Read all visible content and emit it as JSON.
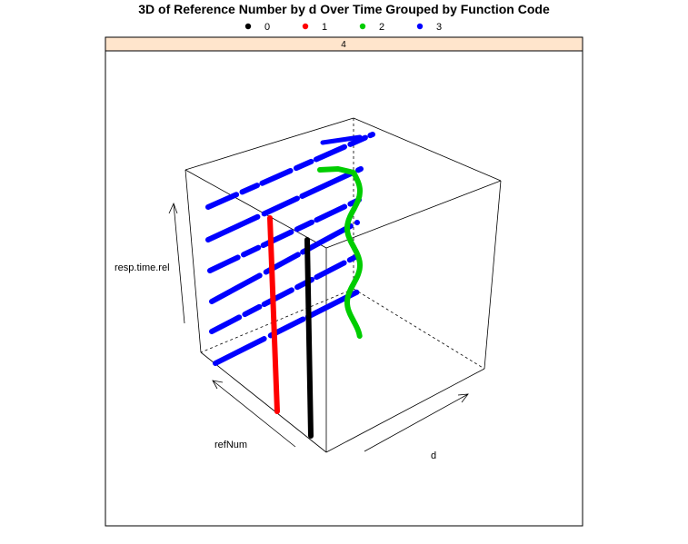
{
  "chart_data": {
    "type": "scatter",
    "title": "3D of Reference Number by d Over Time Grouped by Function Code",
    "panel_label": "4",
    "axes": {
      "x_label": "d",
      "y_label": "refNum",
      "z_label": "resp.time.rel"
    },
    "legend_placement": "top",
    "grid": false,
    "series": [
      {
        "name": "0",
        "color": "#000000"
      },
      {
        "name": "1",
        "color": "#ff0000"
      },
      {
        "name": "2",
        "color": "#00cd00"
      },
      {
        "name": "3",
        "color": "#0000ff"
      }
    ]
  }
}
